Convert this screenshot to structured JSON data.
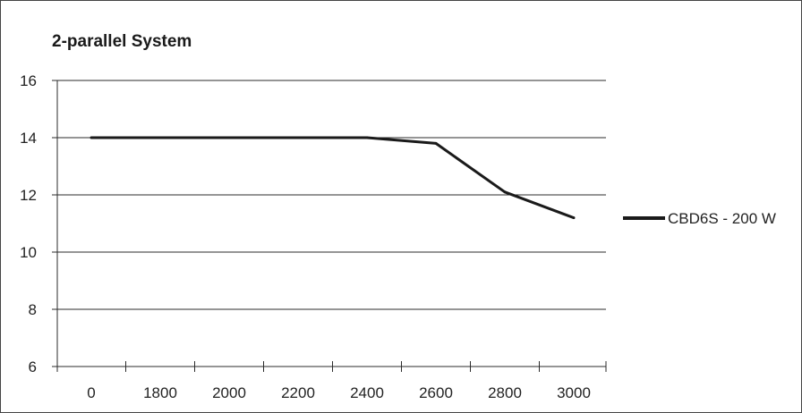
{
  "chart_data": {
    "type": "line",
    "title": "2-parallel System",
    "xlabel": "",
    "ylabel": "",
    "categories": [
      "0",
      "1800",
      "2000",
      "2200",
      "2400",
      "2600",
      "2800",
      "3000"
    ],
    "ylim": [
      6,
      16
    ],
    "yticks": [
      6,
      8,
      10,
      12,
      14,
      16
    ],
    "grid": true,
    "legend_position": "right",
    "series": [
      {
        "name": "CBD6S - 200 W",
        "color": "#1a1a1a",
        "values": [
          14,
          14,
          14,
          14,
          14,
          13.8,
          12.1,
          11.2
        ]
      }
    ]
  }
}
